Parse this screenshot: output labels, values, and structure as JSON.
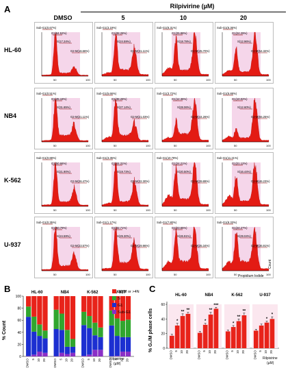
{
  "panelA": {
    "letter": "A",
    "drug_header": "Rilpivirine (µM)",
    "col_headers": [
      "DMSO",
      "5",
      "10",
      "20"
    ],
    "row_labels": [
      "HL-60",
      "NB4",
      "K-562",
      "U-937"
    ],
    "x_ticks": [
      "50",
      "100"
    ],
    "y_axis_label": "Count",
    "x_axis_label": "Propidium Iodide"
  },
  "chart_data": [
    {
      "type": "histogram",
      "panel": "A",
      "x_axis_label": "Propidium Iodide",
      "y_axis_label": "Count",
      "cells": [
        {
          "row": "HL-60",
          "col": "DMSO",
          "gates": {
            "Sub-G1": "Sub-G1(0.67%)",
            "G1": "G1(64.52%)",
            "S": "S(17.24%)",
            "G2M": "G2-M(16.66%)"
          }
        },
        {
          "row": "HL-60",
          "col": "5",
          "gates": {
            "Sub-G1": "Sub-G1(3.19%)",
            "G1": "G1(38.28%)",
            "S": "S(24.59%)",
            "G2M": "G2-M(31.11%)"
          }
        },
        {
          "row": "HL-60",
          "col": "10",
          "gates": {
            "Sub-G1": "Sub-G1(8.31%)",
            "G1": "G1(25.88%)",
            "S": "S(18.78%)",
            "G2M": "G2-M(45.70%)"
          }
        },
        {
          "row": "HL-60",
          "col": "20",
          "gates": {
            "Sub-G1": "Sub-G1(6.36%)",
            "G1": "G1(24.29%)",
            "S": "S(12.96%)",
            "G2M": "G2-M(54.32%)"
          }
        },
        {
          "row": "NB4",
          "col": "DMSO",
          "gates": {
            "Sub-G1": "Sub-G1(0.51%)",
            "G1": "G1(45.18%)",
            "S": "S(31.65%)",
            "G2M": "G2-M(21.11%)"
          }
        },
        {
          "row": "NB4",
          "col": "5",
          "gates": {
            "Sub-G1": "Sub-G1(5.66%)",
            "G1": "G1(38.28%)",
            "S": "S(27.14%)",
            "G2M": "G2-M(21.03%)"
          }
        },
        {
          "row": "NB4",
          "col": "10",
          "gates": {
            "Sub-G1": "Sub-G1(3.72%)",
            "G1": "G1(12.36%)",
            "S": "S(28.06%)",
            "G2M": "G2-M(44.26%)"
          }
        },
        {
          "row": "NB4",
          "col": "20",
          "gates": {
            "Sub-G1": "Sub-G1(5.88%)",
            "G1": "G1(10.02%)",
            "S": "S(12.60%)",
            "G2M": "G2-M(55.25%)"
          }
        },
        {
          "row": "K-562",
          "col": "DMSO",
          "gates": {
            "Sub-G1": "Sub-G1(0.88%)",
            "G1": "G1(50.66%)",
            "S": "S(21.90%)",
            "G2M": "G2-M(26.47%)"
          }
        },
        {
          "row": "K-562",
          "col": "5",
          "gates": {
            "Sub-G1": "Sub-G1(3.35%)",
            "G1": "G1(44.31%)",
            "S": "S(19.73%)",
            "G2M": "G2-M(32.30%)"
          }
        },
        {
          "row": "K-562",
          "col": "10",
          "gates": {
            "Sub-G1": "Sub-G1(10.78%)",
            "G1": "G1(24.21%)",
            "S": "S(20.50%)",
            "G2M": "G2-M(39.89%)"
          }
        },
        {
          "row": "K-562",
          "col": "20",
          "gates": {
            "Sub-G1": "Sub-G1(11.21%)",
            "G1": "G1(21.12%)",
            "S": "S(16.44%)",
            "G2M": "G2-M(46.23%)"
          }
        },
        {
          "row": "U-937",
          "col": "DMSO",
          "gates": {
            "Sub-G1": "Sub-G1(0.35%)",
            "G1": "G1(50.79%)",
            "S": "S(24.59%)",
            "G2M": "G2-M(23.57%)"
          }
        },
        {
          "row": "U-937",
          "col": "5",
          "gates": {
            "Sub-G1": "Sub-G1(1.17%)",
            "G1": "G1(32.71%)",
            "S": "S(29.30%)",
            "G2M": "G2-M(29.96%)"
          }
        },
        {
          "row": "U-937",
          "col": "10",
          "gates": {
            "Sub-G1": "Sub-G1(7.80%)",
            "G1": "G1(23.65%)",
            "S": "S(26.91%)",
            "G2M": "G2-M(35.34%)"
          }
        },
        {
          "row": "U-937",
          "col": "20",
          "gates": {
            "Sub-G1": "Sub-G1(8.33%)",
            "G1": "G1(24.27%)",
            "S": "S(29.04%)",
            "G2M": "G2-M(36.91%)"
          }
        }
      ]
    },
    {
      "type": "stacked-bar",
      "panel": "B",
      "letter": "B",
      "ylabel": "% Count",
      "ylim": [
        0,
        100
      ],
      "y_ticks": [
        0,
        20,
        40,
        60,
        80,
        100
      ],
      "groups": [
        "HL-60",
        "NB4",
        "K-562",
        "U-937"
      ],
      "categories": [
        "DMSO",
        "5",
        "10",
        "20"
      ],
      "drug_label": "Rilpivirine",
      "unit_label": "(µM)",
      "legend": [
        {
          "name": "G2/M or >4N",
          "color": "#e8231a"
        },
        {
          "name": "S",
          "color": "#31a62e"
        },
        {
          "name": "G1",
          "color": "#1c2fd1"
        },
        {
          "name": "Sub-G1",
          "color": "#8a2fc6"
        }
      ],
      "series": [
        {
          "name": "Sub-G1",
          "values": [
            [
              0.7,
              3,
              8,
              6
            ],
            [
              0.5,
              6,
              4,
              6
            ],
            [
              1,
              3,
              11,
              11
            ],
            [
              0.4,
              1,
              8,
              8
            ]
          ]
        },
        {
          "name": "G1",
          "values": [
            [
              65,
              38,
              26,
              24
            ],
            [
              45,
              38,
              12,
              10
            ],
            [
              51,
              44,
              24,
              21
            ],
            [
              51,
              33,
              24,
              24
            ]
          ]
        },
        {
          "name": "S",
          "values": [
            [
              17,
              25,
              19,
              13
            ],
            [
              32,
              27,
              28,
              13
            ],
            [
              22,
              20,
              21,
              16
            ],
            [
              25,
              29,
              27,
              29
            ]
          ]
        },
        {
          "name": "G2/M or >4N",
          "values": [
            [
              17,
              34,
              47,
              57
            ],
            [
              22,
              29,
              56,
              71
            ],
            [
              26,
              33,
              44,
              52
            ],
            [
              24,
              37,
              41,
              39
            ]
          ]
        }
      ]
    },
    {
      "type": "bar",
      "panel": "C",
      "letter": "C",
      "ylabel": "% G₂/M phase cells",
      "ylim": [
        0,
        60
      ],
      "y_ticks": [
        0,
        20,
        40,
        60
      ],
      "groups": [
        "HL-60",
        "NB4",
        "K-562",
        "U-937"
      ],
      "categories": [
        "DMSO",
        "5",
        "10",
        "20"
      ],
      "drug_label": "Rilpivirine",
      "unit_label": "(µM)",
      "bar_color": "#e8231a",
      "values": [
        [
          17,
          31,
          44,
          47
        ],
        [
          21,
          32,
          46,
          54
        ],
        [
          23,
          29,
          37,
          45
        ],
        [
          24,
          31,
          35,
          40
        ]
      ],
      "errors": [
        [
          2,
          3,
          3,
          2
        ],
        [
          2,
          2,
          3,
          2
        ],
        [
          2,
          2,
          3,
          3
        ],
        [
          2,
          2,
          2,
          3
        ]
      ],
      "significance": [
        [
          "",
          "*",
          "**",
          "**"
        ],
        [
          "",
          "*",
          "**",
          "***"
        ],
        [
          "",
          "*",
          "**",
          "**"
        ],
        [
          "",
          "",
          "*",
          "*"
        ]
      ]
    }
  ]
}
